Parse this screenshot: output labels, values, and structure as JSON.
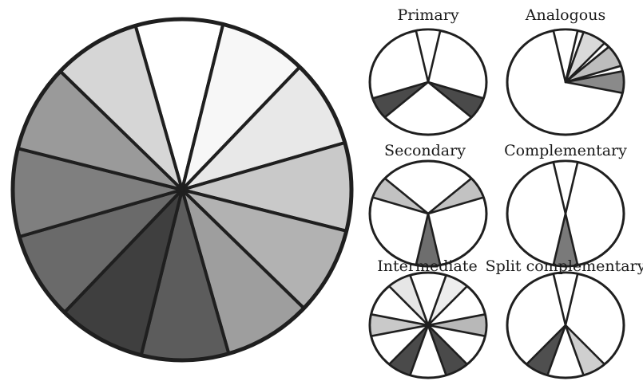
{
  "colors": {
    "outline": "#1f1f1f",
    "background": "#ffffff"
  },
  "main_wheel": {
    "segments": 12,
    "shades": [
      "#ffffff",
      "#f7f7f7",
      "#e8e8e8",
      "#c9c9c9",
      "#b2b2b2",
      "#9e9e9e",
      "#5c5c5c",
      "#3f3f3f",
      "#6a6a6a",
      "#7f7f7f",
      "#9a9a9a",
      "#d6d6d6"
    ]
  },
  "schemes": [
    {
      "label": "Primary",
      "highlight": [
        0,
        4,
        8
      ],
      "fills": [
        "#ffffff",
        "#4a4a4a",
        "#4a4a4a"
      ]
    },
    {
      "label": "Analogous",
      "highlight": [
        0,
        1,
        2,
        3
      ],
      "fills": [
        "#ffffff",
        "#d9d9d9",
        "#bdbdbd",
        "#8a8a8a"
      ]
    },
    {
      "label": "Secondary",
      "highlight": [
        2,
        6,
        10
      ],
      "fills": [
        "#c2c2c2",
        "#6e6e6e",
        "#c2c2c2"
      ]
    },
    {
      "label": "Complementary",
      "highlight": [
        0,
        6
      ],
      "fills": [
        "#ffffff",
        "#7a7a7a"
      ]
    },
    {
      "label": "Intermediate",
      "highlight": [
        1,
        3,
        5,
        7,
        9,
        11
      ],
      "fills": [
        "#ededed",
        "#b8b8b8",
        "#4a4a4a",
        "#4a4a4a",
        "#c9c9c9",
        "#e6e6e6"
      ]
    },
    {
      "label": "Split complementary",
      "highlight": [
        0,
        5,
        7
      ],
      "fills": [
        "#ffffff",
        "#cfcfcf",
        "#4f4f4f"
      ]
    }
  ]
}
